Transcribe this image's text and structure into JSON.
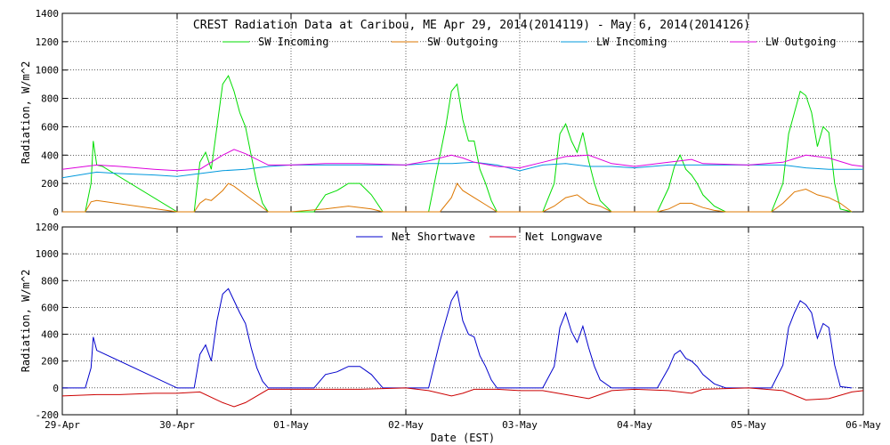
{
  "chart_data": [
    {
      "type": "line",
      "title": "CREST Radiation Data at Caribou, ME   Apr 29, 2014(2014119) - May  6, 2014(2014126)",
      "ylabel": "Radiation, W/m^2",
      "ylim": [
        0,
        1400
      ],
      "yticks": [
        "0",
        "200",
        "400",
        "600",
        "800",
        "1000",
        "1200",
        "1400"
      ],
      "xlim": [
        0,
        7
      ],
      "grid": true,
      "legend_position": "top",
      "series": [
        {
          "name": "SW Incoming",
          "color": "#00dd00",
          "x": [
            0,
            0.2,
            0.25,
            0.27,
            0.3,
            0.35,
            1,
            1.15,
            1.2,
            1.25,
            1.3,
            1.35,
            1.4,
            1.45,
            1.5,
            1.55,
            1.6,
            1.65,
            1.7,
            1.75,
            1.8,
            1.9,
            2.0,
            2.2,
            2.3,
            2.4,
            2.5,
            2.6,
            2.7,
            2.8,
            3.0,
            3.2,
            3.3,
            3.35,
            3.4,
            3.45,
            3.5,
            3.55,
            3.6,
            3.65,
            3.7,
            3.75,
            3.8,
            3.9,
            4.2,
            4.3,
            4.35,
            4.4,
            4.45,
            4.5,
            4.55,
            4.6,
            4.65,
            4.7,
            4.8,
            4.9,
            5.2,
            5.3,
            5.35,
            5.4,
            5.45,
            5.5,
            5.55,
            5.6,
            5.7,
            5.8,
            5.9,
            6.2,
            6.3,
            6.35,
            6.4,
            6.45,
            6.5,
            6.55,
            6.6,
            6.65,
            6.7,
            6.75,
            6.8,
            6.9
          ],
          "y": [
            0,
            0,
            200,
            500,
            330,
            320,
            0,
            0,
            350,
            420,
            300,
            600,
            900,
            960,
            850,
            700,
            600,
            400,
            200,
            60,
            0,
            0,
            0,
            0,
            120,
            150,
            200,
            200,
            120,
            0,
            0,
            0,
            400,
            600,
            850,
            900,
            650,
            500,
            500,
            300,
            200,
            80,
            0,
            0,
            0,
            200,
            550,
            620,
            500,
            420,
            560,
            360,
            200,
            80,
            0,
            0,
            0,
            170,
            320,
            400,
            300,
            260,
            200,
            120,
            40,
            0,
            0,
            0,
            200,
            550,
            700,
            850,
            820,
            700,
            460,
            600,
            560,
            200,
            20,
            0
          ]
        },
        {
          "name": "SW Outgoing",
          "color": "#dd7700",
          "x": [
            0,
            0.2,
            0.25,
            0.3,
            1,
            1.15,
            1.2,
            1.25,
            1.3,
            1.4,
            1.45,
            1.5,
            1.6,
            1.7,
            1.8,
            2.0,
            2.3,
            2.5,
            2.7,
            2.8,
            3.0,
            3.3,
            3.4,
            3.45,
            3.5,
            3.6,
            3.7,
            3.8,
            4.2,
            4.3,
            4.4,
            4.5,
            4.6,
            4.7,
            4.8,
            5.2,
            5.3,
            5.4,
            5.5,
            5.6,
            5.7,
            5.8,
            6.2,
            6.3,
            6.4,
            6.5,
            6.6,
            6.7,
            6.8,
            6.9
          ],
          "y": [
            0,
            0,
            70,
            80,
            0,
            0,
            60,
            90,
            80,
            150,
            200,
            180,
            120,
            60,
            0,
            0,
            20,
            40,
            20,
            0,
            0,
            0,
            100,
            200,
            150,
            100,
            50,
            0,
            0,
            40,
            100,
            120,
            60,
            40,
            0,
            0,
            20,
            60,
            60,
            30,
            10,
            0,
            0,
            60,
            140,
            160,
            120,
            100,
            60,
            0
          ]
        },
        {
          "name": "LW Incoming",
          "color": "#0099dd",
          "x": [
            0,
            0.3,
            0.5,
            0.8,
            1.0,
            1.2,
            1.4,
            1.6,
            1.8,
            2.0,
            2.3,
            2.6,
            3.0,
            3.2,
            3.4,
            3.6,
            3.8,
            4.0,
            4.2,
            4.4,
            4.6,
            4.8,
            5.0,
            5.3,
            5.6,
            6.0,
            6.3,
            6.5,
            6.7,
            6.9,
            7.0
          ],
          "y": [
            240,
            280,
            270,
            260,
            250,
            270,
            290,
            300,
            320,
            330,
            330,
            330,
            330,
            340,
            340,
            350,
            330,
            290,
            330,
            340,
            320,
            320,
            310,
            330,
            330,
            330,
            330,
            310,
            300,
            300,
            300
          ]
        },
        {
          "name": "LW Outgoing",
          "color": "#dd00dd",
          "x": [
            0,
            0.3,
            0.5,
            0.8,
            1.0,
            1.2,
            1.4,
            1.5,
            1.6,
            1.8,
            2.0,
            2.3,
            2.6,
            3.0,
            3.2,
            3.4,
            3.5,
            3.6,
            3.8,
            4.0,
            4.2,
            4.4,
            4.6,
            4.8,
            5.0,
            5.3,
            5.5,
            5.6,
            6.0,
            6.3,
            6.5,
            6.7,
            6.9,
            7.0
          ],
          "y": [
            300,
            330,
            320,
            300,
            290,
            300,
            400,
            440,
            410,
            330,
            330,
            340,
            340,
            330,
            360,
            400,
            380,
            350,
            320,
            310,
            350,
            390,
            400,
            340,
            320,
            350,
            370,
            340,
            330,
            350,
            400,
            380,
            330,
            320
          ]
        }
      ]
    },
    {
      "type": "line",
      "title": "",
      "xlabel": "Date (EST)",
      "ylabel": "Radiation, W/m^2",
      "ylim": [
        -200,
        1200
      ],
      "yticks": [
        "-200",
        "0",
        "200",
        "400",
        "600",
        "800",
        "1000",
        "1200"
      ],
      "xlim": [
        0,
        7
      ],
      "categories": [
        "29-Apr",
        "30-Apr",
        "01-May",
        "02-May",
        "03-May",
        "04-May",
        "05-May",
        "06-May"
      ],
      "grid": true,
      "legend_position": "top",
      "series": [
        {
          "name": "Net Shortwave",
          "color": "#0000cc",
          "x": [
            0,
            0.2,
            0.25,
            0.27,
            0.3,
            0.35,
            1,
            1.15,
            1.2,
            1.25,
            1.3,
            1.35,
            1.4,
            1.45,
            1.5,
            1.55,
            1.6,
            1.65,
            1.7,
            1.75,
            1.8,
            1.9,
            2.0,
            2.2,
            2.3,
            2.4,
            2.5,
            2.6,
            2.7,
            2.8,
            3.0,
            3.2,
            3.3,
            3.35,
            3.4,
            3.45,
            3.5,
            3.55,
            3.6,
            3.65,
            3.7,
            3.75,
            3.8,
            3.9,
            4.2,
            4.3,
            4.35,
            4.4,
            4.45,
            4.5,
            4.55,
            4.6,
            4.65,
            4.7,
            4.8,
            4.9,
            5.2,
            5.3,
            5.35,
            5.4,
            5.45,
            5.5,
            5.55,
            5.6,
            5.7,
            5.8,
            5.9,
            6.2,
            6.3,
            6.35,
            6.4,
            6.45,
            6.5,
            6.55,
            6.6,
            6.65,
            6.7,
            6.75,
            6.8,
            6.9
          ],
          "y": [
            0,
            0,
            150,
            380,
            280,
            260,
            0,
            0,
            250,
            320,
            200,
            500,
            700,
            740,
            650,
            560,
            480,
            300,
            150,
            50,
            0,
            0,
            0,
            0,
            100,
            120,
            160,
            160,
            100,
            0,
            0,
            0,
            350,
            500,
            650,
            720,
            500,
            400,
            380,
            240,
            160,
            60,
            0,
            0,
            0,
            160,
            450,
            560,
            420,
            340,
            460,
            300,
            160,
            60,
            0,
            0,
            0,
            150,
            250,
            280,
            220,
            200,
            160,
            100,
            30,
            0,
            0,
            0,
            170,
            450,
            560,
            650,
            620,
            560,
            370,
            480,
            450,
            170,
            10,
            0
          ]
        },
        {
          "name": "Net Longwave",
          "color": "#cc0000",
          "x": [
            0,
            0.3,
            0.5,
            0.8,
            1.0,
            1.2,
            1.4,
            1.5,
            1.6,
            1.8,
            2.0,
            2.3,
            2.6,
            3.0,
            3.2,
            3.4,
            3.5,
            3.6,
            3.8,
            4.0,
            4.2,
            4.4,
            4.6,
            4.8,
            5.0,
            5.3,
            5.5,
            5.6,
            6.0,
            6.3,
            6.5,
            6.7,
            6.9,
            7.0
          ],
          "y": [
            -60,
            -50,
            -50,
            -40,
            -40,
            -30,
            -110,
            -140,
            -110,
            -10,
            -10,
            -10,
            -10,
            0,
            -20,
            -60,
            -40,
            -10,
            -10,
            -20,
            -20,
            -50,
            -80,
            -20,
            -10,
            -20,
            -40,
            -10,
            0,
            -20,
            -90,
            -80,
            -30,
            -20
          ]
        }
      ]
    }
  ]
}
